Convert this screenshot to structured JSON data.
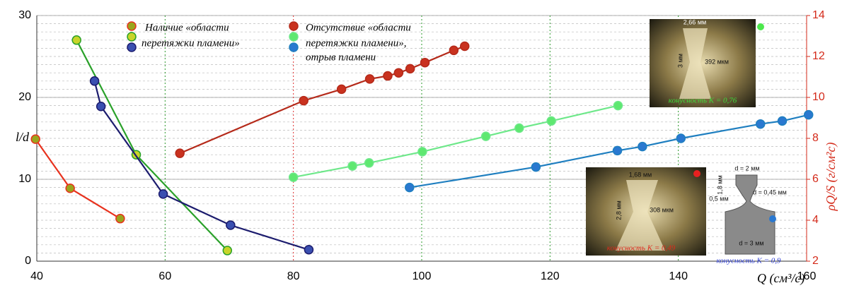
{
  "chart_data": {
    "type": "line",
    "xlabel": "Q (см³/с)",
    "ylabel": "l/d",
    "y2label": "ρQ/S (г/см²с)",
    "xlim": [
      40,
      160
    ],
    "xticks": [
      40,
      60,
      80,
      100,
      120,
      140,
      160
    ],
    "ylim": [
      0,
      30
    ],
    "yticks": [
      0,
      10,
      20,
      30
    ],
    "y2lim": [
      2,
      14
    ],
    "y2ticks": [
      2,
      4,
      6,
      8,
      10,
      12,
      14
    ],
    "grid": true,
    "legend": {
      "present": [
        "Наличие «области",
        "перетяжки пламени»"
      ],
      "absent": [
        "Отсутствие «области",
        "перетяжки пламени»,",
        "отрыв пламени"
      ]
    },
    "series": [
      {
        "axis": "y",
        "color": "#e8321e",
        "marker": "#9aa51d",
        "x": [
          39.8,
          45.2,
          53
        ],
        "values": [
          14.9,
          8.9,
          5.2
        ]
      },
      {
        "axis": "y",
        "color": "#2aa12a",
        "marker": "#c8d42a",
        "x": [
          46.2,
          55.5,
          69.7
        ],
        "values": [
          27,
          13,
          1.3
        ]
      },
      {
        "axis": "y",
        "color": "#1c1c6e",
        "marker": "#3a4fb0",
        "x": [
          49,
          50,
          59.7,
          70.2,
          82.4
        ],
        "values": [
          22,
          18.9,
          8.2,
          4.4,
          1.4
        ]
      },
      {
        "axis": "y2",
        "color": "#b52a1a",
        "marker": "#c9321f",
        "x": [
          62.3,
          81.6,
          87.5,
          91.9,
          94.7,
          96.4,
          98.2,
          100.5,
          105,
          106.7
        ],
        "values": [
          7.27,
          9.84,
          10.4,
          10.9,
          11.05,
          11.2,
          11.4,
          11.7,
          12.3,
          12.5
        ]
      },
      {
        "axis": "y2",
        "color": "#6ee88a",
        "marker": "#5ee870",
        "x": [
          80,
          89.2,
          91.8,
          100.1,
          110,
          115.2,
          120.2,
          130.6
        ],
        "values": [
          6.1,
          6.65,
          6.8,
          7.35,
          8.1,
          8.5,
          8.85,
          9.6
        ]
      },
      {
        "axis": "y2",
        "color": "#1f7fc0",
        "marker": "#2a78d0",
        "x": [
          98.1,
          117.8,
          130.5,
          134.4,
          140.4,
          152.8,
          156.2,
          160.3
        ],
        "values": [
          5.6,
          6.6,
          7.4,
          7.6,
          8.0,
          8.7,
          8.85,
          9.15
        ]
      }
    ],
    "insets": [
      {
        "labels": [
          "2,66 мм",
          "3 мм",
          "392 мкм",
          "конусность K = 0,76"
        ]
      },
      {
        "labels": [
          "1,68 мм",
          "2,8 мм",
          "308 мкм",
          "конусность K = 0,49"
        ]
      },
      {
        "labels": [
          "d = 2 мм",
          "1,8 мм",
          "0,5 мм",
          "d = 0,45 мм",
          "d = 3 мм",
          "конусность K = 0,9"
        ]
      }
    ]
  }
}
